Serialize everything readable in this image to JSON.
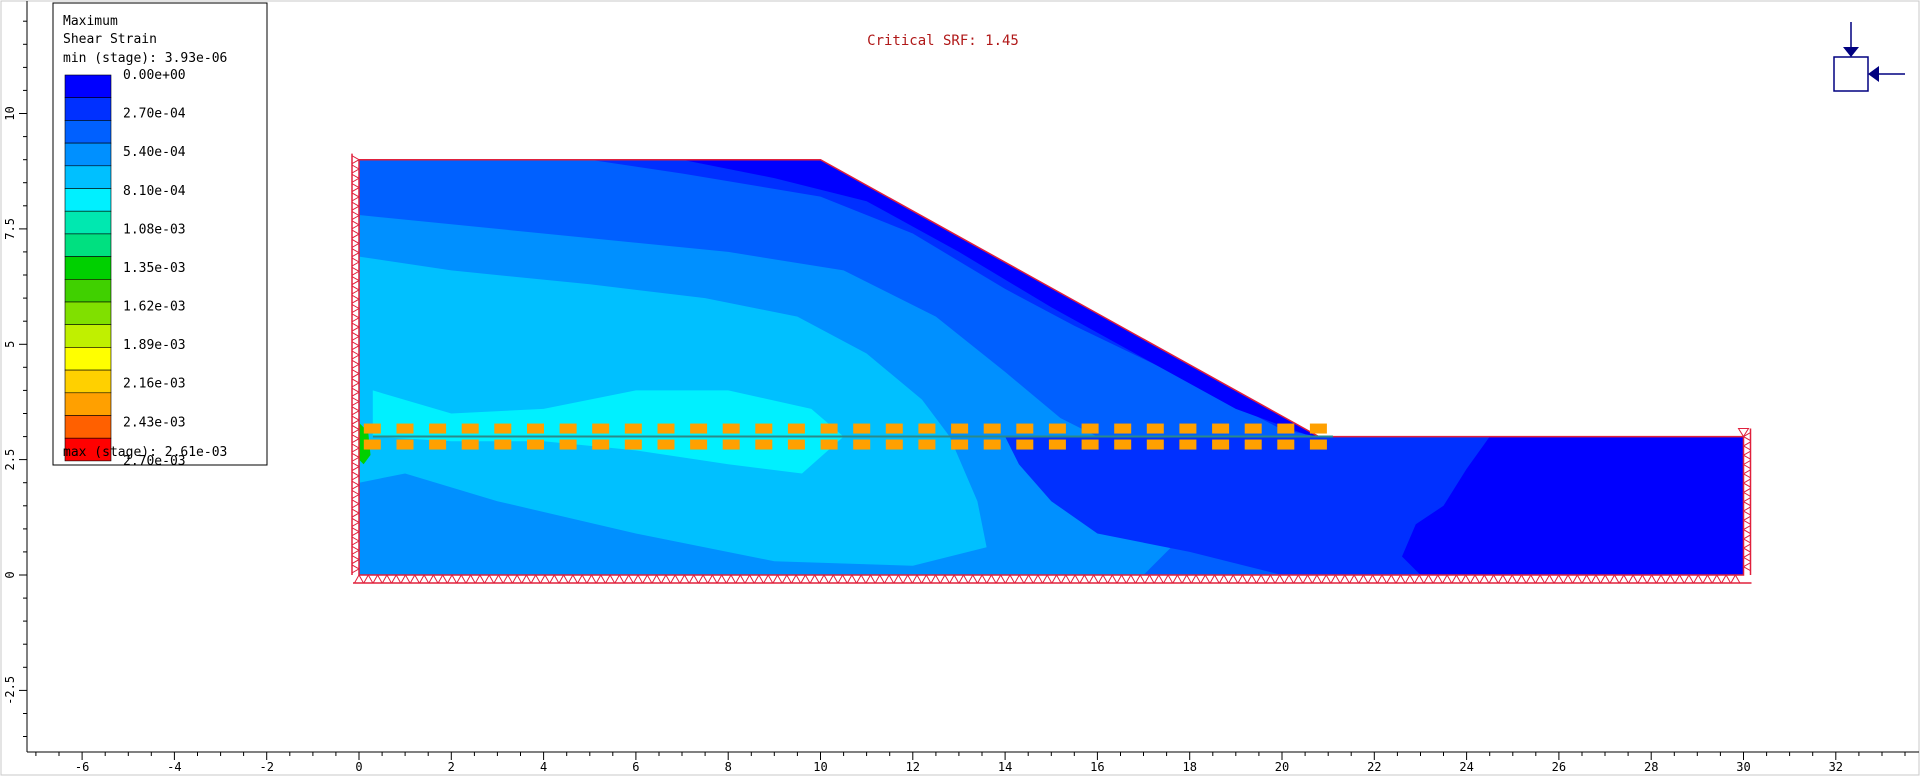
{
  "title": "Critical SRF: 1.45",
  "legend": {
    "title_line1": "Maximum",
    "title_line2": "Shear Strain",
    "min_text": "min (stage): 3.93e-06",
    "max_text": "max (stage): 2.61e-03",
    "colors": [
      "#0000ff",
      "#0030ff",
      "#0060ff",
      "#0090ff",
      "#00c0ff",
      "#00f0ff",
      "#00e8b0",
      "#00e080",
      "#00d000",
      "#40d000",
      "#80e000",
      "#c0f000",
      "#ffff00",
      "#ffd000",
      "#ffa000",
      "#ff6000",
      "#ff0000"
    ],
    "labels": [
      "0.00e+00",
      "2.70e-04",
      "5.40e-04",
      "8.10e-04",
      "1.08e-03",
      "1.35e-03",
      "1.62e-03",
      "1.89e-03",
      "2.16e-03",
      "2.43e-03",
      "2.70e-03"
    ]
  },
  "axes": {
    "x_ticks": [
      "-6",
      "-4",
      "-2",
      "0",
      "2",
      "4",
      "6",
      "8",
      "10",
      "12",
      "14",
      "16",
      "18",
      "20",
      "22",
      "24",
      "26",
      "28",
      "30",
      "32"
    ],
    "y_ticks": [
      "10",
      "7.5",
      "5",
      "2.5",
      "0",
      "-2.5"
    ]
  },
  "model": {
    "left_x": 0,
    "right_x": 30,
    "crest_x": 10,
    "toe_x": 20.8,
    "top_y": 9,
    "bench_y": 3,
    "bottom_y": 0,
    "reinforcement_y": 3,
    "reinforcement_from_x": 0.3,
    "reinforcement_to_x": 20.8
  },
  "colors": {
    "boundary": "#e0203c",
    "support": "#e0203c",
    "axis": "#000000",
    "critical_text": "#b01818",
    "reinforcement": "#ffa000",
    "reinforcement_line": "#2a8a8a",
    "stress_icon": "#000080"
  }
}
